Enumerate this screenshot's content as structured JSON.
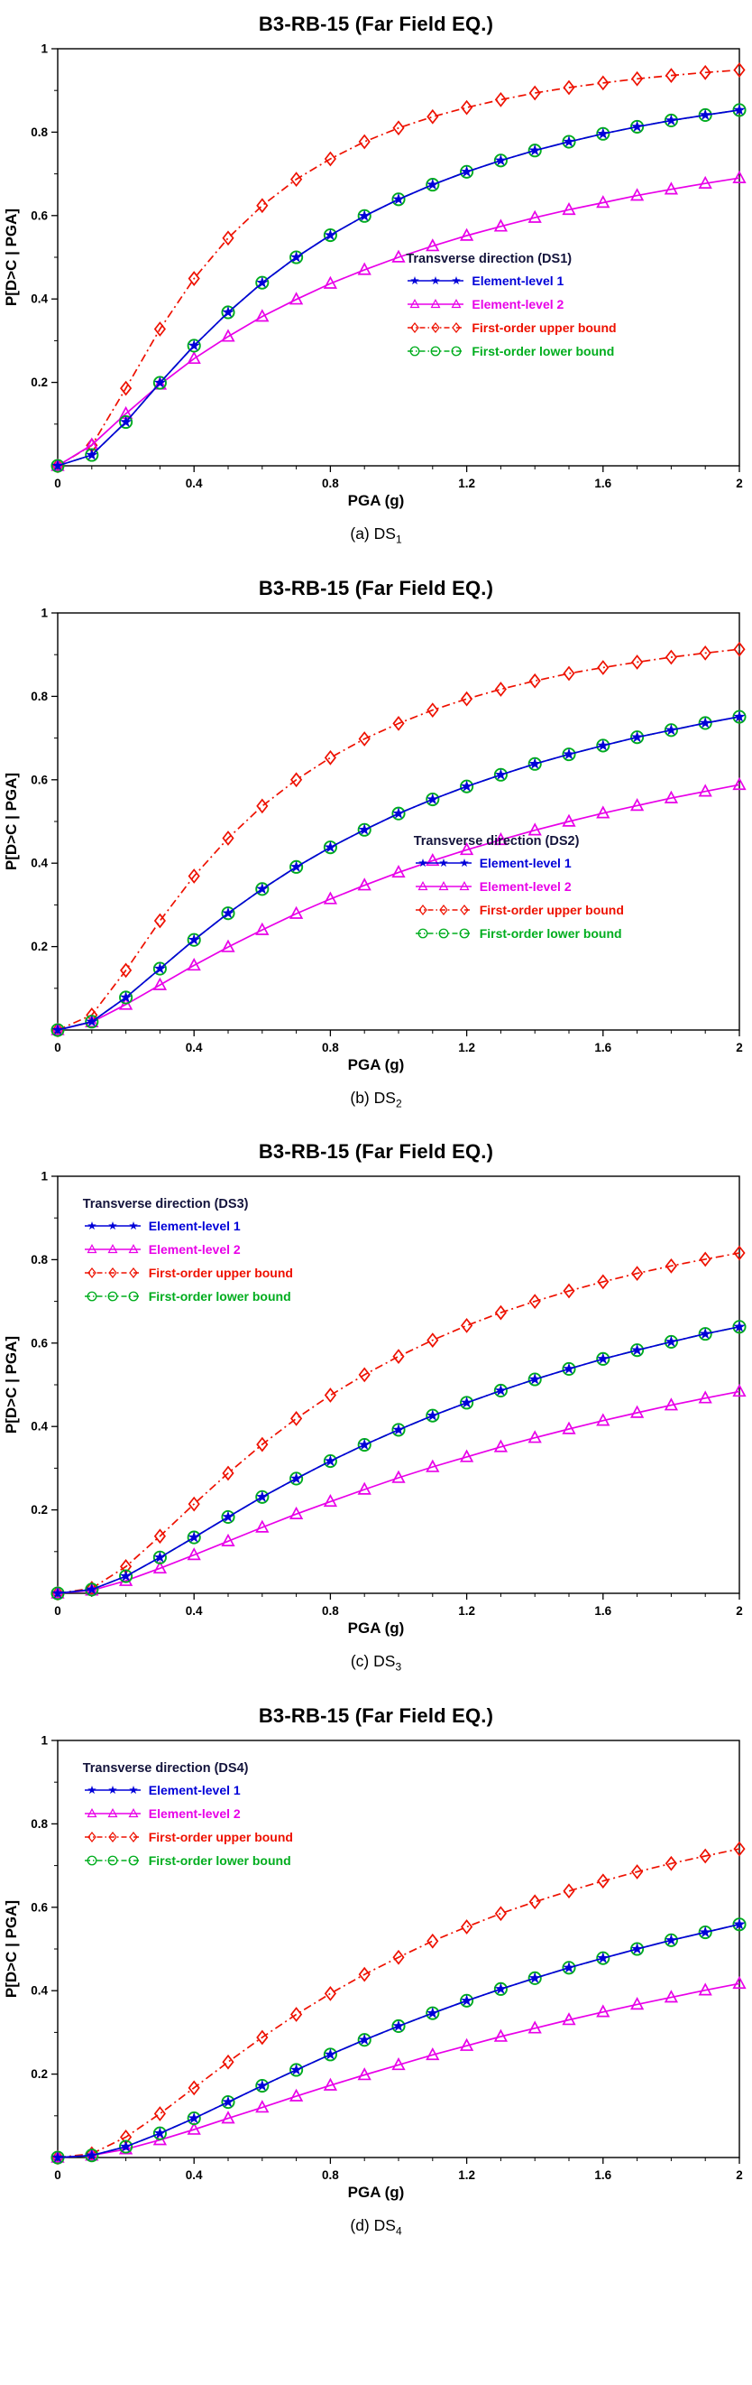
{
  "page": {
    "background": "#ffffff"
  },
  "series_styles": [
    {
      "key": "el1",
      "name": "Element-level 1",
      "color": "#0000d8",
      "marker": "star",
      "dash": "solid"
    },
    {
      "key": "el2",
      "name": "Element-level 2",
      "color": "#e800e8",
      "marker": "triangle",
      "dash": "solid"
    },
    {
      "key": "upper",
      "name": "First-order upper bound",
      "color": "#ee1100",
      "marker": "diamond",
      "dash": "dashed"
    },
    {
      "key": "lower",
      "name": "First-order lower bound",
      "color": "#00ad1e",
      "marker": "circle",
      "dash": "dashed"
    }
  ],
  "chart_data": [
    {
      "id": "ds1",
      "type": "line",
      "title": "B3-RB-15 (Far Field EQ.)",
      "xlabel": "PGA (g)",
      "ylabel": "P[D>C | PGA]",
      "caption": "(a) DS",
      "caption_sub": "1",
      "xlim": [
        0,
        2
      ],
      "ylim": [
        0,
        1
      ],
      "grid": false,
      "xticks": [
        0,
        0.4,
        0.8,
        1.2,
        1.6,
        2
      ],
      "xtick_labels": [
        "0",
        "0.4",
        "0.8",
        "1.2",
        "1.6",
        "2"
      ],
      "yticks": [
        0.2,
        0.4,
        0.6,
        0.8,
        1
      ],
      "ytick_labels": [
        "0.2",
        "0.4",
        "0.6",
        "0.8",
        "1"
      ],
      "legend": {
        "title": "Transverse direction (DS1)",
        "position": {
          "left": "54%",
          "top": "47%"
        },
        "keys": [
          "el1",
          "el2",
          "upper",
          "lower"
        ],
        "labels": [
          "Element-level 1",
          "Element-level 2",
          "First-order upper bound",
          "First-order lower bound"
        ]
      },
      "x": [
        0,
        0.1,
        0.2,
        0.3,
        0.4,
        0.5,
        0.6,
        0.7,
        0.8,
        0.9,
        1,
        1.1,
        1.2,
        1.3,
        1.4,
        1.5,
        1.6,
        1.7,
        1.8,
        1.9,
        2
      ],
      "series": [
        {
          "key": "el1",
          "values": [
            0,
            0.026,
            0.105,
            0.199,
            0.288,
            0.368,
            0.439,
            0.5,
            0.553,
            0.599,
            0.639,
            0.674,
            0.705,
            0.732,
            0.756,
            0.777,
            0.796,
            0.813,
            0.828,
            0.841,
            0.853
          ]
        },
        {
          "key": "el2",
          "values": [
            0,
            0.05,
            0.125,
            0.195,
            0.257,
            0.31,
            0.358,
            0.399,
            0.437,
            0.47,
            0.5,
            0.527,
            0.552,
            0.574,
            0.595,
            0.614,
            0.631,
            0.648,
            0.663,
            0.677,
            0.69
          ]
        },
        {
          "key": "upper",
          "values": [
            0,
            0.049,
            0.186,
            0.328,
            0.449,
            0.546,
            0.624,
            0.687,
            0.736,
            0.777,
            0.81,
            0.837,
            0.859,
            0.878,
            0.894,
            0.907,
            0.918,
            0.928,
            0.936,
            0.943,
            0.949
          ]
        },
        {
          "key": "lower",
          "values": [
            0,
            0.026,
            0.105,
            0.199,
            0.288,
            0.368,
            0.439,
            0.5,
            0.553,
            0.599,
            0.639,
            0.674,
            0.705,
            0.732,
            0.756,
            0.777,
            0.796,
            0.813,
            0.828,
            0.841,
            0.853
          ]
        }
      ]
    },
    {
      "id": "ds2",
      "type": "line",
      "title": "B3-RB-15 (Far Field EQ.)",
      "xlabel": "PGA (g)",
      "ylabel": "P[D>C | PGA]",
      "caption": "(b) DS",
      "caption_sub": "2",
      "xlim": [
        0,
        2
      ],
      "ylim": [
        0,
        1
      ],
      "grid": false,
      "xticks": [
        0,
        0.4,
        0.8,
        1.2,
        1.6,
        2
      ],
      "xtick_labels": [
        "0",
        "0.4",
        "0.8",
        "1.2",
        "1.6",
        "2"
      ],
      "yticks": [
        0.2,
        0.4,
        0.6,
        0.8,
        1
      ],
      "ytick_labels": [
        "0.2",
        "0.4",
        "0.6",
        "0.8",
        "1"
      ],
      "legend": {
        "title": "Transverse direction (DS2)",
        "position": {
          "left": "55%",
          "top": "51%"
        },
        "keys": [
          "el1",
          "el2",
          "upper",
          "lower"
        ],
        "labels": [
          "Element-level 1",
          "Element-level 2",
          "First-order upper bound",
          "First-order lower bound"
        ]
      },
      "x": [
        0,
        0.1,
        0.2,
        0.3,
        0.4,
        0.5,
        0.6,
        0.7,
        0.8,
        0.9,
        1,
        1.1,
        1.2,
        1.3,
        1.4,
        1.5,
        1.6,
        1.7,
        1.8,
        1.9,
        2
      ],
      "series": [
        {
          "key": "el1",
          "values": [
            0,
            0.02,
            0.078,
            0.147,
            0.216,
            0.28,
            0.338,
            0.391,
            0.438,
            0.48,
            0.519,
            0.553,
            0.584,
            0.612,
            0.638,
            0.661,
            0.682,
            0.702,
            0.719,
            0.736,
            0.751
          ]
        },
        {
          "key": "el2",
          "values": [
            0,
            0.019,
            0.061,
            0.108,
            0.155,
            0.199,
            0.24,
            0.279,
            0.314,
            0.347,
            0.378,
            0.406,
            0.432,
            0.456,
            0.479,
            0.5,
            0.52,
            0.538,
            0.556,
            0.572,
            0.588
          ]
        },
        {
          "key": "upper",
          "values": [
            0,
            0.036,
            0.143,
            0.262,
            0.369,
            0.46,
            0.537,
            0.6,
            0.653,
            0.698,
            0.735,
            0.767,
            0.794,
            0.817,
            0.837,
            0.855,
            0.869,
            0.882,
            0.894,
            0.904,
            0.913
          ]
        },
        {
          "key": "lower",
          "values": [
            0,
            0.02,
            0.078,
            0.147,
            0.216,
            0.28,
            0.338,
            0.391,
            0.438,
            0.48,
            0.519,
            0.553,
            0.584,
            0.612,
            0.638,
            0.661,
            0.682,
            0.702,
            0.719,
            0.736,
            0.751
          ]
        }
      ]
    },
    {
      "id": "ds3",
      "type": "line",
      "title": "B3-RB-15 (Far Field EQ.)",
      "xlabel": "PGA (g)",
      "ylabel": "P[D>C | PGA]",
      "caption": "(c) DS",
      "caption_sub": "3",
      "xlim": [
        0,
        2
      ],
      "ylim": [
        0,
        1
      ],
      "grid": false,
      "xticks": [
        0,
        0.4,
        0.8,
        1.2,
        1.6,
        2
      ],
      "xtick_labels": [
        "0",
        "0.4",
        "0.8",
        "1.2",
        "1.6",
        "2"
      ],
      "yticks": [
        0.2,
        0.4,
        0.6,
        0.8,
        1
      ],
      "ytick_labels": [
        "0.2",
        "0.4",
        "0.6",
        "0.8",
        "1"
      ],
      "legend": {
        "title": "Transverse direction (DS3)",
        "position": {
          "left": "11%",
          "top": "7%"
        },
        "keys": [
          "el1",
          "el2",
          "upper",
          "lower"
        ],
        "labels": [
          "Element-level 1",
          "Element-level 2",
          "First-order upper bound",
          "First-order lower bound"
        ]
      },
      "x": [
        0,
        0.1,
        0.2,
        0.3,
        0.4,
        0.5,
        0.6,
        0.7,
        0.8,
        0.9,
        1,
        1.1,
        1.2,
        1.3,
        1.4,
        1.5,
        1.6,
        1.7,
        1.8,
        1.9,
        2
      ],
      "series": [
        {
          "key": "el1",
          "values": [
            0,
            0.009,
            0.041,
            0.086,
            0.134,
            0.183,
            0.231,
            0.275,
            0.317,
            0.356,
            0.392,
            0.426,
            0.457,
            0.486,
            0.513,
            0.538,
            0.562,
            0.583,
            0.603,
            0.622,
            0.639
          ]
        },
        {
          "key": "el2",
          "values": [
            0,
            0.007,
            0.03,
            0.06,
            0.092,
            0.125,
            0.158,
            0.19,
            0.22,
            0.249,
            0.277,
            0.303,
            0.327,
            0.351,
            0.373,
            0.394,
            0.414,
            0.433,
            0.451,
            0.468,
            0.484
          ]
        },
        {
          "key": "upper",
          "values": [
            0,
            0.012,
            0.064,
            0.137,
            0.214,
            0.288,
            0.357,
            0.419,
            0.475,
            0.524,
            0.568,
            0.607,
            0.642,
            0.673,
            0.7,
            0.725,
            0.747,
            0.767,
            0.785,
            0.801,
            0.816
          ]
        },
        {
          "key": "lower",
          "values": [
            0,
            0.009,
            0.041,
            0.086,
            0.134,
            0.183,
            0.231,
            0.275,
            0.317,
            0.356,
            0.392,
            0.426,
            0.457,
            0.486,
            0.513,
            0.538,
            0.562,
            0.583,
            0.603,
            0.622,
            0.639
          ]
        }
      ]
    },
    {
      "id": "ds4",
      "type": "line",
      "title": "B3-RB-15 (Far Field EQ.)",
      "xlabel": "PGA (g)",
      "ylabel": "P[D>C | PGA]",
      "caption": "(d) DS",
      "caption_sub": "4",
      "xlim": [
        0,
        2
      ],
      "ylim": [
        0,
        1
      ],
      "grid": false,
      "xticks": [
        0,
        0.4,
        0.8,
        1.2,
        1.6,
        2
      ],
      "xtick_labels": [
        "0",
        "0.4",
        "0.8",
        "1.2",
        "1.6",
        "2"
      ],
      "yticks": [
        0.2,
        0.4,
        0.6,
        0.8,
        1
      ],
      "ytick_labels": [
        "0.2",
        "0.4",
        "0.6",
        "0.8",
        "1"
      ],
      "legend": {
        "title": "Transverse direction (DS4)",
        "position": {
          "left": "11%",
          "top": "7%"
        },
        "keys": [
          "el1",
          "el2",
          "upper",
          "lower"
        ],
        "labels": [
          "Element-level 1",
          "Element-level 2",
          "First-order upper bound",
          "First-order lower bound"
        ]
      },
      "x": [
        0,
        0.1,
        0.2,
        0.3,
        0.4,
        0.5,
        0.6,
        0.7,
        0.8,
        0.9,
        1,
        1.1,
        1.2,
        1.3,
        1.4,
        1.5,
        1.6,
        1.7,
        1.8,
        1.9,
        2
      ],
      "series": [
        {
          "key": "el1",
          "values": [
            0,
            0.005,
            0.026,
            0.058,
            0.094,
            0.133,
            0.172,
            0.21,
            0.247,
            0.282,
            0.315,
            0.346,
            0.376,
            0.404,
            0.43,
            0.455,
            0.478,
            0.5,
            0.521,
            0.54,
            0.559
          ]
        },
        {
          "key": "el2",
          "values": [
            0,
            0.005,
            0.02,
            0.042,
            0.067,
            0.094,
            0.12,
            0.147,
            0.173,
            0.198,
            0.222,
            0.246,
            0.268,
            0.29,
            0.31,
            0.33,
            0.349,
            0.367,
            0.384,
            0.401,
            0.417
          ]
        },
        {
          "key": "upper",
          "values": [
            0,
            0.009,
            0.049,
            0.105,
            0.167,
            0.229,
            0.288,
            0.343,
            0.393,
            0.439,
            0.48,
            0.519,
            0.553,
            0.585,
            0.613,
            0.639,
            0.663,
            0.685,
            0.705,
            0.723,
            0.74
          ]
        },
        {
          "key": "lower",
          "values": [
            0,
            0.005,
            0.026,
            0.058,
            0.094,
            0.133,
            0.172,
            0.21,
            0.247,
            0.282,
            0.315,
            0.346,
            0.376,
            0.404,
            0.43,
            0.455,
            0.478,
            0.5,
            0.521,
            0.54,
            0.559
          ]
        }
      ]
    }
  ]
}
